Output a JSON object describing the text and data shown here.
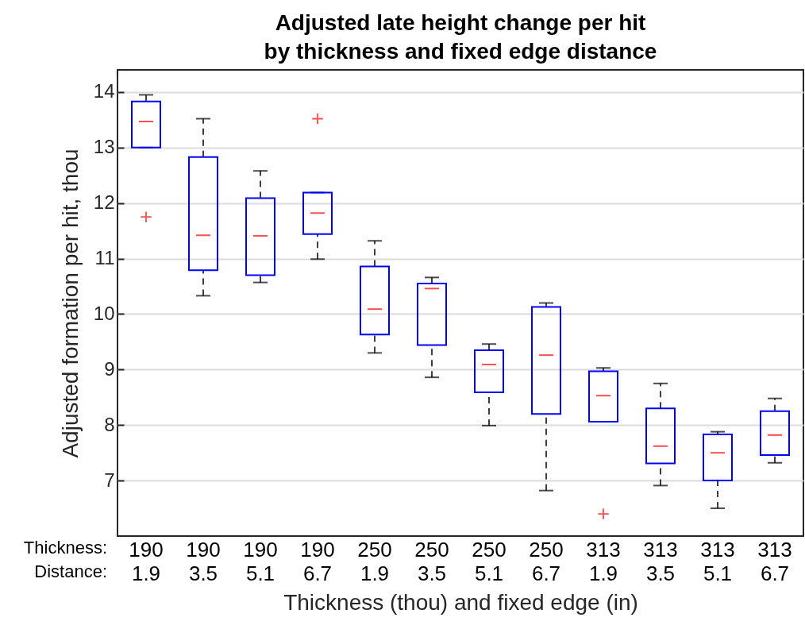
{
  "chart_data": {
    "type": "box",
    "title": "Adjusted late height change per hit\nby thickness and fixed edge distance",
    "xlabel": "Thickness (thou) and fixed edge (in)",
    "ylabel": "Adjusted formation per hit, thou",
    "categories": [
      "190\n1.9",
      "190\n3.5",
      "190\n5.1",
      "190\n6.7",
      "250\n1.9",
      "250\n3.5",
      "250\n5.1",
      "250\n6.7",
      "313\n1.9",
      "313\n3.5",
      "313\n5.1",
      "313\n6.7"
    ],
    "annotations": [
      "Thickness:",
      "Distance:"
    ],
    "ylim": [
      6.0,
      14.4
    ],
    "yticks": [
      7,
      8,
      9,
      10,
      11,
      12,
      13,
      14
    ],
    "grid": "y",
    "boxes": [
      {
        "low": 13.0,
        "q1": 13.0,
        "median": 13.47,
        "q3": 13.83,
        "high": 13.95,
        "outliers": [
          11.75
        ]
      },
      {
        "low": 10.33,
        "q1": 10.79,
        "median": 11.42,
        "q3": 12.83,
        "high": 13.52
      },
      {
        "low": 10.57,
        "q1": 10.7,
        "median": 11.41,
        "q3": 12.09,
        "high": 12.58
      },
      {
        "low": 10.99,
        "q1": 11.44,
        "median": 11.82,
        "q3": 12.19,
        "high": 12.19,
        "outliers": [
          13.52
        ]
      },
      {
        "low": 9.3,
        "q1": 9.63,
        "median": 10.09,
        "q3": 10.86,
        "high": 11.32
      },
      {
        "low": 8.86,
        "q1": 9.44,
        "median": 10.46,
        "q3": 10.55,
        "high": 10.66
      },
      {
        "low": 7.99,
        "q1": 8.59,
        "median": 9.09,
        "q3": 9.35,
        "high": 9.46
      },
      {
        "low": 6.82,
        "q1": 8.2,
        "median": 9.26,
        "q3": 10.13,
        "high": 10.2
      },
      {
        "low": 8.06,
        "q1": 8.06,
        "median": 8.53,
        "q3": 8.97,
        "high": 9.03,
        "outliers": [
          6.4
        ]
      },
      {
        "low": 6.91,
        "q1": 7.31,
        "median": 7.62,
        "q3": 8.3,
        "high": 8.75
      },
      {
        "low": 6.5,
        "q1": 7.0,
        "median": 7.5,
        "q3": 7.83,
        "high": 7.88
      },
      {
        "low": 7.32,
        "q1": 7.46,
        "median": 7.82,
        "q3": 8.25,
        "high": 8.48
      }
    ]
  }
}
